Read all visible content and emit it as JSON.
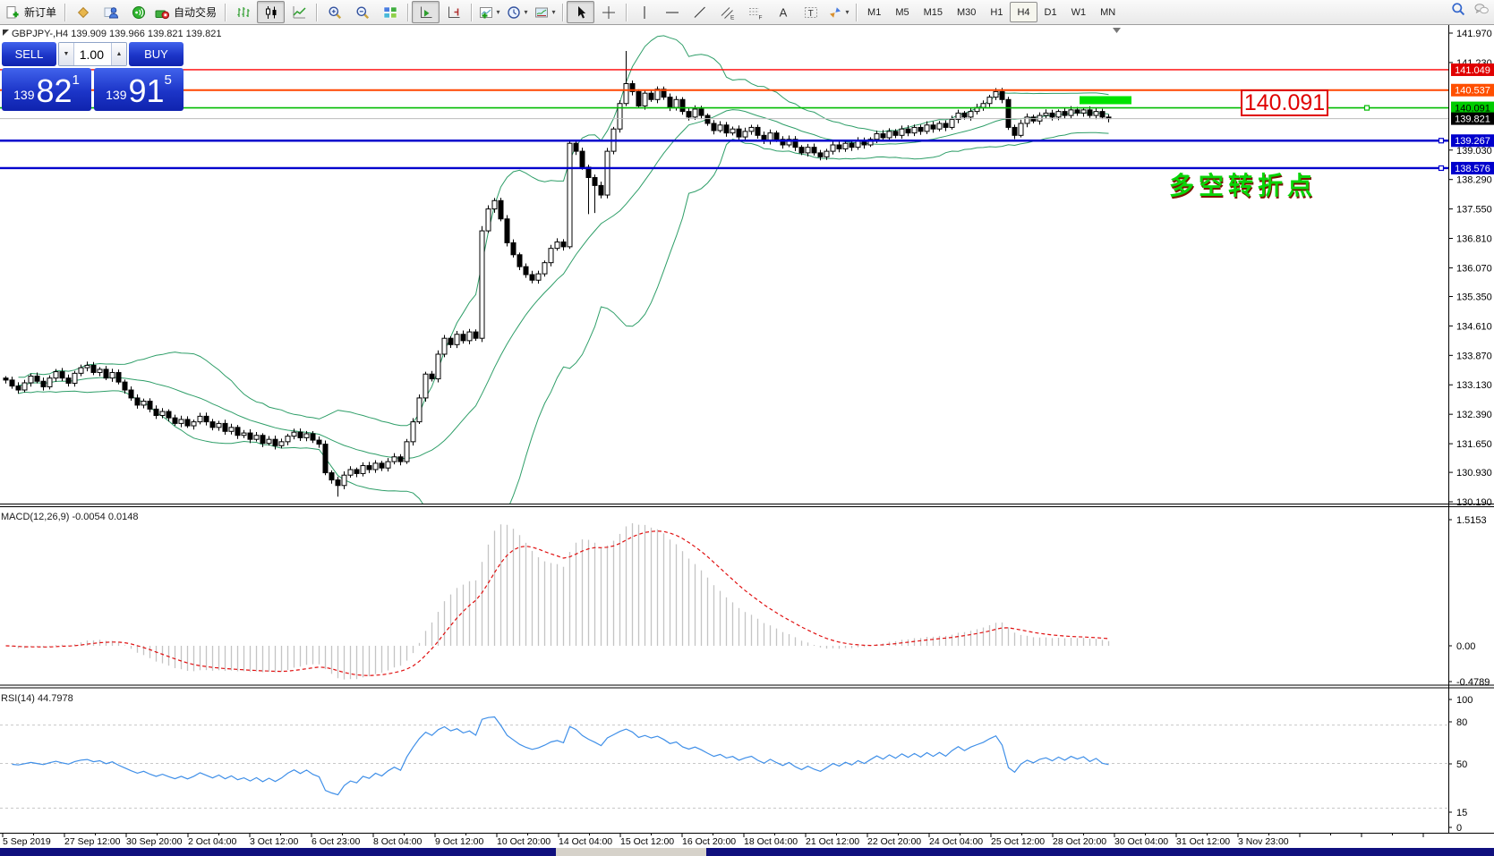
{
  "toolbar": {
    "new_order_label": "新订单",
    "autotrade_label": "自动交易",
    "timeframes": [
      "M1",
      "M5",
      "M15",
      "M30",
      "H1",
      "H4",
      "D1",
      "W1",
      "MN"
    ],
    "active_timeframe": "H4"
  },
  "chart_header": {
    "symbol_line": "GBPJPY-,H4  139.909 139.966 139.821 139.821"
  },
  "trade_panel": {
    "sell_label": "SELL",
    "buy_label": "BUY",
    "volume": "1.00",
    "sell_small": "139",
    "sell_big": "82",
    "sell_sup": "1",
    "buy_small": "139",
    "buy_big": "91",
    "buy_sup": "5"
  },
  "chart_data": {
    "type": "candlestick",
    "symbol": "GBPJPY-",
    "period": "H4",
    "open_first": 133.3,
    "closes": [
      133.25,
      133.1,
      133.0,
      133.18,
      133.35,
      133.22,
      133.08,
      133.3,
      133.46,
      133.3,
      133.17,
      133.42,
      133.56,
      133.62,
      133.44,
      133.52,
      133.3,
      133.44,
      133.2,
      133.0,
      132.8,
      132.62,
      132.72,
      132.52,
      132.36,
      132.46,
      132.3,
      132.16,
      132.26,
      132.1,
      132.2,
      132.34,
      132.2,
      132.06,
      132.16,
      131.96,
      132.06,
      131.86,
      131.92,
      131.76,
      131.86,
      131.66,
      131.76,
      131.6,
      131.7,
      131.84,
      131.94,
      131.8,
      131.9,
      131.74,
      131.64,
      130.92,
      130.74,
      130.6,
      130.86,
      131.0,
      130.9,
      131.1,
      131.0,
      131.16,
      131.04,
      131.2,
      131.32,
      131.2,
      131.7,
      132.2,
      132.8,
      133.4,
      133.28,
      133.9,
      134.3,
      134.14,
      134.4,
      134.24,
      134.46,
      134.3,
      137.0,
      137.55,
      137.76,
      137.3,
      136.7,
      136.4,
      136.1,
      135.9,
      135.76,
      135.92,
      136.2,
      136.56,
      136.72,
      136.6,
      139.2,
      139.0,
      138.6,
      138.34,
      138.14,
      137.9,
      139.0,
      139.56,
      140.2,
      140.7,
      140.5,
      140.14,
      140.46,
      140.3,
      140.56,
      140.36,
      140.1,
      140.3,
      140.0,
      139.86,
      140.06,
      139.9,
      139.7,
      139.52,
      139.66,
      139.46,
      139.56,
      139.36,
      139.5,
      139.6,
      139.4,
      139.26,
      139.46,
      139.3,
      139.16,
      139.3,
      139.1,
      138.96,
      139.1,
      138.96,
      138.86,
      139.0,
      139.16,
      139.06,
      139.2,
      139.1,
      139.26,
      139.16,
      139.3,
      139.44,
      139.34,
      139.5,
      139.4,
      139.56,
      139.46,
      139.6,
      139.5,
      139.66,
      139.56,
      139.7,
      139.6,
      139.8,
      139.96,
      139.86,
      140.0,
      140.1,
      140.2,
      140.36,
      140.5,
      140.3,
      139.6,
      139.4,
      139.7,
      139.86,
      139.76,
      139.9,
      139.96,
      139.86,
      140.0,
      139.9,
      140.04,
      139.96,
      140.04,
      139.9,
      140.0,
      139.86,
      139.821
    ],
    "wick_overrides": {
      "53": {
        "low": 130.32
      },
      "76": {
        "high": 137.12
      },
      "93": {
        "low": 137.42
      },
      "94": {
        "low": 137.45
      },
      "99": {
        "high": 141.52
      }
    },
    "indicators": {
      "bollinger": {
        "period": 20,
        "deviation": 2,
        "color": "#2e9e68"
      },
      "macd": {
        "label": "MACD(12,26,9) -0.0054 0.0148",
        "axis_labels": [
          "1.5153",
          "0.00",
          "-0.4789"
        ],
        "histogram_color": "#c4c4c4",
        "signal_color": "#e01010"
      },
      "rsi": {
        "label": "RSI(14) 44.7978",
        "axis_labels": [
          "100",
          "80",
          "50",
          "15",
          "0"
        ],
        "levels": [
          80,
          50,
          15
        ],
        "line_color": "#3f8fe8"
      }
    },
    "price_axis_ticks": [
      141.97,
      141.23,
      139.03,
      138.29,
      137.55,
      136.81,
      136.07,
      135.35,
      134.61,
      133.87,
      133.13,
      132.39,
      131.65,
      130.93,
      130.19
    ],
    "price_badges": [
      {
        "value": "141.049",
        "bg": "#e00000",
        "fg": "#ffffff"
      },
      {
        "value": "140.537",
        "bg": "#ff4f00",
        "fg": "#ffffff"
      },
      {
        "value": "140.091",
        "bg": "#00cc00",
        "fg": "#000000"
      },
      {
        "value": "139.821",
        "bg": "#000000",
        "fg": "#ffffff"
      },
      {
        "value": "139.267",
        "bg": "#0000cc",
        "fg": "#ffffff"
      },
      {
        "value": "138.576",
        "bg": "#0000cc",
        "fg": "#ffffff"
      }
    ],
    "hlines": [
      {
        "price": 141.049,
        "color": "#ff0000",
        "width": 1.4
      },
      {
        "price": 140.537,
        "color": "#ff4500",
        "width": 2
      },
      {
        "price": 140.091,
        "color": "#00bb00",
        "width": 1.6,
        "marker": true
      },
      {
        "price": 139.821,
        "color": "#bdbdbd",
        "width": 1
      },
      {
        "price": 139.267,
        "color": "#0000cd",
        "width": 2.4,
        "marker": true
      },
      {
        "price": 138.576,
        "color": "#0000cd",
        "width": 2.4,
        "marker": true
      }
    ],
    "x_labels": [
      "5 Sep 2019",
      "27 Sep 12:00",
      "30 Sep 20:00",
      "2 Oct 04:00",
      "3 Oct 12:00",
      "6 Oct 23:00",
      "8 Oct 04:00",
      "9 Oct 12:00",
      "10 Oct 20:00",
      "14 Oct 04:00",
      "15 Oct 12:00",
      "16 Oct 20:00",
      "18 Oct 04:00",
      "21 Oct 12:00",
      "22 Oct 20:00",
      "24 Oct 04:00",
      "25 Oct 12:00",
      "28 Oct 20:00",
      "30 Oct 04:00",
      "31 Oct 12:00",
      "3 Nov 23:00"
    ],
    "annotations": {
      "price_callout": "140.091",
      "note": "多空转折点",
      "highlight_color": "#00e400"
    }
  }
}
